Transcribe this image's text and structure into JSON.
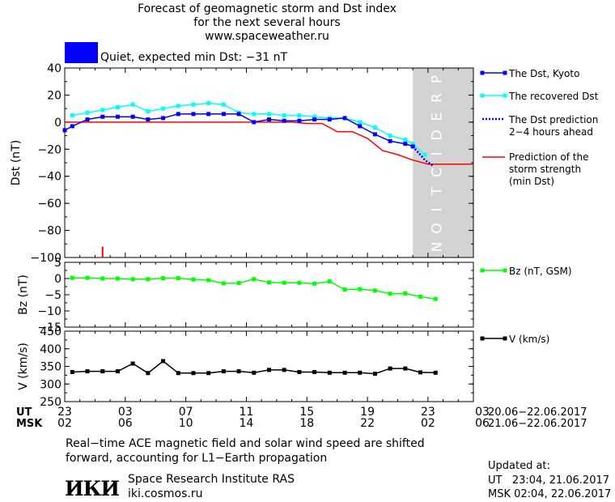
{
  "header": {
    "title_line1": "Forecast of geomagnetic storm and Dst index",
    "title_line2": "for the next several hours",
    "title_line3": "www.spaceweather.ru",
    "status_text": "Quiet, expected min Dst: −31 nT",
    "status_color": "#0000ff"
  },
  "legend": {
    "dst_kyoto": "The Dst, Kyoto",
    "dst_recovered": "The recovered Dst",
    "dst_prediction": "The Dst prediction\n2−4 hours ahead",
    "storm_strength": "Prediction of the\nstorm strength\n(min Dst)",
    "bz": "Bz (nT, GSM)",
    "v": "V (km/s)"
  },
  "time_axis": {
    "ut_label": "UT",
    "msk_label": "MSK",
    "ut_ticks": [
      "23",
      "03",
      "07",
      "11",
      "15",
      "19",
      "23",
      "03"
    ],
    "msk_ticks": [
      "02",
      "06",
      "10",
      "14",
      "18",
      "22",
      "02",
      "06"
    ],
    "ut_range": "20.06−22.06.2017",
    "msk_range": "21.06−22.06.2017"
  },
  "prediction_label": "PREDICTION",
  "notes": {
    "line1": "Real−time ACE magnetic field and solar wind speed are shifted",
    "line2": "forward, accounting for L1−Earth propagation"
  },
  "footer": {
    "logo_text": "ИКИ",
    "institute": "Space Research Institute RAS",
    "site": "iki.cosmos.ru",
    "updated_label": "Updated at:",
    "updated_ut": "UT   23:04, 21.06.2017",
    "updated_msk": "MSK 02:04, 22.06.2017"
  },
  "chart_data": [
    {
      "type": "line",
      "panel": "dst",
      "xlabel": "",
      "ylabel": "Dst (nT)",
      "ylim": [
        -100,
        40
      ],
      "yticks": [
        40,
        20,
        0,
        -20,
        -40,
        -60,
        -80,
        -100
      ],
      "xlim": [
        0,
        27
      ],
      "prediction_start_x": 23,
      "colors": {
        "dst_kyoto": "#0000ff",
        "dst_recovered": "#00ffff",
        "dst_prediction": "#0000ff",
        "storm_strength": "#ff0000",
        "prediction_band": "#d3d3d3",
        "marker": "#ff0000"
      },
      "marker_x": 2.5,
      "series": [
        {
          "name": "The Dst, Kyoto",
          "x": [
            0,
            0.5,
            1.5,
            2.5,
            3.5,
            4.5,
            5.5,
            6.5,
            7.5,
            8.5,
            9.5,
            10.5,
            11.5,
            12.5,
            13.5,
            14.5,
            15.5,
            16.5,
            17.5,
            18.5,
            19.5,
            20.5,
            21.5,
            22.5,
            23
          ],
          "y": [
            -6,
            -3,
            2,
            4,
            4,
            4,
            2,
            3,
            6,
            6,
            6,
            6,
            6,
            0,
            2,
            1,
            1,
            2,
            2,
            3,
            -3,
            -9,
            -14,
            -16,
            -18
          ]
        },
        {
          "name": "The recovered Dst",
          "x": [
            0.5,
            1.5,
            2.5,
            3.5,
            4.5,
            5.5,
            6.5,
            7.5,
            8.5,
            9.5,
            10.5,
            11.5,
            12.5,
            13.5,
            14.5,
            15.5,
            16.5,
            17.5,
            18.5,
            19.5,
            20.5,
            21.5,
            22.5,
            23.0,
            23.8
          ],
          "y": [
            5,
            7,
            9,
            11,
            13,
            8,
            10,
            12,
            13,
            14,
            13,
            7,
            6,
            6,
            5,
            5,
            4,
            3,
            3,
            0,
            -4,
            -10,
            -13,
            -16,
            -24
          ]
        },
        {
          "name": "The Dst prediction 2−4 hours ahead",
          "x": [
            23,
            23.4,
            23.8,
            24.3
          ],
          "y": [
            -18,
            -23,
            -28,
            -32
          ]
        },
        {
          "name": "Prediction of the storm strength (min Dst)",
          "x": [
            0,
            1,
            2,
            3,
            4,
            5,
            6,
            7,
            8,
            9,
            10,
            11,
            12,
            13,
            14,
            15,
            16,
            17,
            18,
            19,
            20,
            21,
            22,
            23,
            24,
            25,
            26
          ],
          "y": [
            0,
            0,
            0,
            0,
            0,
            0,
            0,
            0,
            0,
            0,
            0,
            0,
            0,
            0,
            0,
            0,
            -1,
            -1,
            -7,
            -7,
            -12,
            -21,
            -24,
            -28,
            -31,
            -31,
            -31
          ]
        }
      ]
    },
    {
      "type": "line",
      "panel": "bz",
      "ylabel": "Bz (nT)",
      "ylim": [
        -15,
        5
      ],
      "yticks": [
        5,
        0,
        -5,
        -10,
        -15
      ],
      "xlim": [
        0,
        27
      ],
      "color": "#00ff00",
      "series": [
        {
          "name": "Bz (nT, GSM)",
          "x": [
            0.5,
            1.5,
            2.5,
            3.5,
            4.5,
            5.5,
            6.5,
            7.5,
            8.5,
            9.5,
            10.5,
            11.5,
            12.5,
            13.5,
            14.5,
            15.5,
            16.5,
            17.5,
            18.5,
            19.5,
            20.5,
            21.5,
            22.5,
            23.5,
            24.5
          ],
          "y": [
            0.2,
            0.2,
            0,
            0,
            -0.2,
            -0.2,
            0.1,
            0.1,
            -0.3,
            -0.5,
            -1.5,
            -1.4,
            -0.2,
            -1.2,
            -1.3,
            -1.3,
            -1.6,
            -0.9,
            -3.4,
            -3.3,
            -3.7,
            -4.7,
            -4.6,
            -5.6,
            -6.3
          ]
        }
      ]
    },
    {
      "type": "line",
      "panel": "v",
      "ylabel": "V (km/s)",
      "ylim": [
        250,
        450
      ],
      "yticks": [
        450,
        400,
        350,
        300,
        250
      ],
      "xlim": [
        0,
        27
      ],
      "color": "#000000",
      "series": [
        {
          "name": "V (km/s)",
          "x": [
            0.5,
            1.5,
            2.5,
            3.5,
            4.5,
            5.5,
            6.5,
            7.5,
            8.5,
            9.5,
            10.5,
            11.5,
            12.5,
            13.5,
            14.5,
            15.5,
            16.5,
            17.5,
            18.5,
            19.5,
            20.5,
            21.5,
            22.5,
            23.5,
            24.5
          ],
          "y": [
            334,
            336,
            336,
            336,
            358,
            331,
            365,
            331,
            331,
            331,
            336,
            336,
            332,
            340,
            340,
            334,
            334,
            332,
            332,
            332,
            329,
            344,
            344,
            333,
            332
          ]
        }
      ]
    }
  ]
}
